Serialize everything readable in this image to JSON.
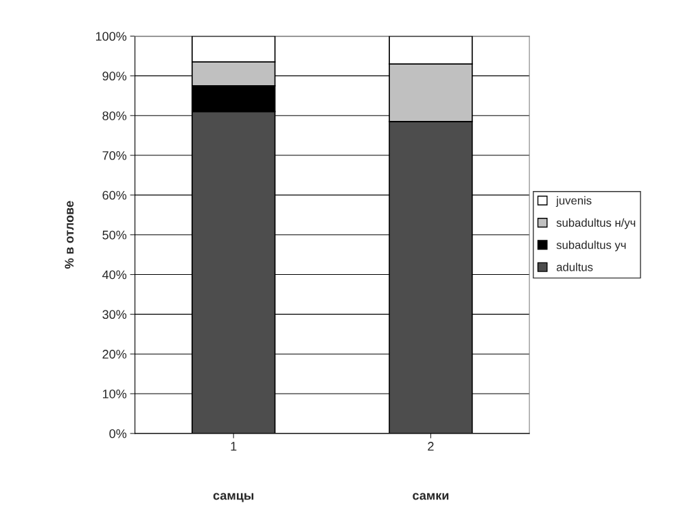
{
  "chart_data": {
    "type": "bar",
    "stacked": true,
    "ylabel": "% в отлове",
    "categories": [
      "1",
      "2"
    ],
    "series": [
      {
        "name": "adultus",
        "color": "#4d4d4d",
        "values": [
          81,
          78.5
        ]
      },
      {
        "name": "subadultus уч",
        "color": "#000000",
        "values": [
          6.5,
          0
        ]
      },
      {
        "name": "subadultus н/уч",
        "color": "#c0c0c0",
        "values": [
          6,
          14.5
        ]
      },
      {
        "name": "juvenis",
        "color": "#ffffff",
        "values": [
          6.5,
          7
        ]
      }
    ],
    "ylim": [
      0,
      100
    ],
    "yticks": [
      {
        "value": 0,
        "label": "0%"
      },
      {
        "value": 10,
        "label": "10%"
      },
      {
        "value": 20,
        "label": "20%"
      },
      {
        "value": 30,
        "label": "30%"
      },
      {
        "value": 40,
        "label": "40%"
      },
      {
        "value": 50,
        "label": "50%"
      },
      {
        "value": 60,
        "label": "60%"
      },
      {
        "value": 70,
        "label": "70%"
      },
      {
        "value": 80,
        "label": "80%"
      },
      {
        "value": 90,
        "label": "90%"
      },
      {
        "value": 100,
        "label": "100%"
      }
    ],
    "grid": "y",
    "legend": "right",
    "annotations": [
      "самцы",
      "самки"
    ]
  }
}
